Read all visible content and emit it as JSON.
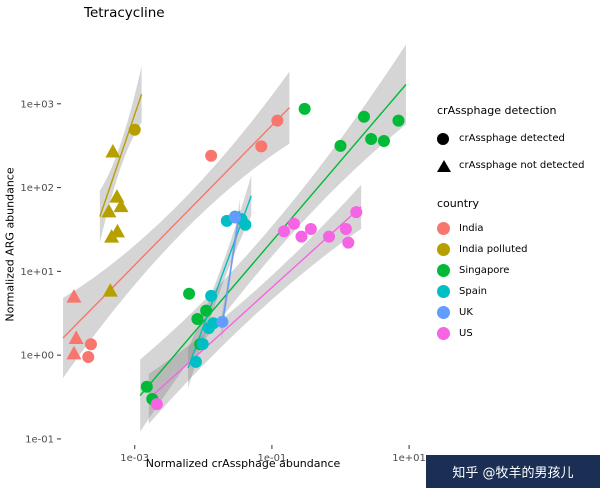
{
  "watermark": {
    "text": "知乎 @牧羊的男孩儿",
    "bg": "#1b2f55"
  },
  "chart_data": {
    "type": "scatter",
    "title": "Tetracycline",
    "xlabel": "Normalized crAssphage abundance",
    "ylabel": "Normalized ARG abundance",
    "x_scale": "log10",
    "y_scale": "log10",
    "x_range": [
      8.7e-05,
      16.5
    ],
    "y_range": [
      0.087,
      6100
    ],
    "grid": "off",
    "legend_position": "right",
    "ribbon_color": "rgba(125,125,125,0.32)",
    "x_ticks": [
      {
        "v": 0.001,
        "label": "1e-03"
      },
      {
        "v": 0.1,
        "label": "1e-01"
      },
      {
        "v": 10,
        "label": "1e+01"
      }
    ],
    "y_ticks": [
      {
        "v": 0.1,
        "label": "1e-01"
      },
      {
        "v": 1,
        "label": "1e+00"
      },
      {
        "v": 10,
        "label": "1e+01"
      },
      {
        "v": 100,
        "label": "1e+02"
      },
      {
        "v": 1000,
        "label": "1e+03"
      }
    ],
    "shape_legend": {
      "title": "crAssphage detection",
      "items": [
        {
          "shape": "circle",
          "label": "crAssphage detected"
        },
        {
          "shape": "triangle",
          "label": "crAssphage not detected"
        }
      ]
    },
    "color_legend": {
      "title": "country",
      "items": [
        {
          "label": "India",
          "color": "#F8766D"
        },
        {
          "label": "India polluted",
          "color": "#B79F00"
        },
        {
          "label": "Singapore",
          "color": "#00BA38"
        },
        {
          "label": "Spain",
          "color": "#00BFC4"
        },
        {
          "label": "UK",
          "color": "#619CFF"
        },
        {
          "label": "US",
          "color": "#F564E3"
        }
      ]
    },
    "series": [
      {
        "name": "India",
        "color": "#F8766D",
        "points": [
          {
            "x": 0.00013,
            "y": 5.0,
            "detected": false
          },
          {
            "x": 0.00014,
            "y": 1.6,
            "detected": false
          },
          {
            "x": 0.00013,
            "y": 1.05,
            "detected": false
          },
          {
            "x": 0.00023,
            "y": 1.35,
            "detected": true
          },
          {
            "x": 0.00021,
            "y": 0.95,
            "detected": true
          },
          {
            "x": 0.013,
            "y": 240,
            "detected": true
          },
          {
            "x": 0.07,
            "y": 310,
            "detected": true
          },
          {
            "x": 0.12,
            "y": 630,
            "detected": true
          }
        ],
        "trend": {
          "x1": 9e-05,
          "y1": 1.6,
          "x2": 0.18,
          "y2": 900
        },
        "ribbon": [
          40,
          16,
          36
        ]
      },
      {
        "name": "India polluted",
        "color": "#B79F00",
        "points": [
          {
            "x": 0.001,
            "y": 490,
            "detected": true
          },
          {
            "x": 0.00048,
            "y": 270,
            "detected": false
          },
          {
            "x": 0.00055,
            "y": 78,
            "detected": false
          },
          {
            "x": 0.00042,
            "y": 52,
            "detected": false
          },
          {
            "x": 0.00063,
            "y": 60,
            "detected": false
          },
          {
            "x": 0.00056,
            "y": 30,
            "detected": false
          },
          {
            "x": 0.00046,
            "y": 26,
            "detected": false
          },
          {
            "x": 0.00044,
            "y": 5.9,
            "detected": false
          }
        ],
        "trend": {
          "x1": 0.00031,
          "y1": 45,
          "x2": 0.00126,
          "y2": 1300
        },
        "ribbon": [
          26,
          12,
          28
        ]
      },
      {
        "name": "Singapore",
        "color": "#00BA38",
        "points": [
          {
            "x": 0.0015,
            "y": 0.42,
            "detected": true
          },
          {
            "x": 0.0018,
            "y": 0.3,
            "detected": true
          },
          {
            "x": 0.0062,
            "y": 5.4,
            "detected": true
          },
          {
            "x": 0.0082,
            "y": 2.7,
            "detected": true
          },
          {
            "x": 0.011,
            "y": 3.4,
            "detected": true
          },
          {
            "x": 0.009,
            "y": 1.35,
            "detected": true
          },
          {
            "x": 0.3,
            "y": 870,
            "detected": true
          },
          {
            "x": 1.0,
            "y": 315,
            "detected": true
          },
          {
            "x": 2.2,
            "y": 700,
            "detected": true
          },
          {
            "x": 2.8,
            "y": 380,
            "detected": true
          },
          {
            "x": 4.3,
            "y": 360,
            "detected": true
          },
          {
            "x": 7.0,
            "y": 630,
            "detected": true
          }
        ],
        "trend": {
          "x1": 0.0012,
          "y1": 0.33,
          "x2": 9.0,
          "y2": 1700
        },
        "ribbon": [
          36,
          15,
          40
        ]
      },
      {
        "name": "Spain",
        "color": "#00BFC4",
        "points": [
          {
            "x": 0.0078,
            "y": 0.83,
            "detected": true
          },
          {
            "x": 0.0098,
            "y": 1.36,
            "detected": true
          },
          {
            "x": 0.012,
            "y": 2.1,
            "detected": true
          },
          {
            "x": 0.014,
            "y": 2.4,
            "detected": true
          },
          {
            "x": 0.013,
            "y": 5.1,
            "detected": true
          },
          {
            "x": 0.022,
            "y": 40,
            "detected": true
          },
          {
            "x": 0.029,
            "y": 45,
            "detected": true
          },
          {
            "x": 0.036,
            "y": 42,
            "detected": true
          },
          {
            "x": 0.041,
            "y": 36,
            "detected": true
          }
        ],
        "trend": {
          "x1": 0.006,
          "y1": 0.7,
          "x2": 0.05,
          "y2": 80
        },
        "ribbon": [
          20,
          10,
          20
        ]
      },
      {
        "name": "UK",
        "color": "#619CFF",
        "points": [
          {
            "x": 0.019,
            "y": 2.5,
            "detected": true
          },
          {
            "x": 0.029,
            "y": 44,
            "detected": true
          }
        ],
        "trend": {
          "x1": 0.0185,
          "y1": 2.1,
          "x2": 0.034,
          "y2": 53
        },
        "ribbon": [
          12,
          7,
          12
        ]
      },
      {
        "name": "US",
        "color": "#F564E3",
        "points": [
          {
            "x": 0.0021,
            "y": 0.26,
            "detected": true
          },
          {
            "x": 0.15,
            "y": 30,
            "detected": true
          },
          {
            "x": 0.21,
            "y": 37,
            "detected": true
          },
          {
            "x": 0.27,
            "y": 26,
            "detected": true
          },
          {
            "x": 0.37,
            "y": 32,
            "detected": true
          },
          {
            "x": 0.68,
            "y": 26,
            "detected": true
          },
          {
            "x": 1.2,
            "y": 32,
            "detected": true
          },
          {
            "x": 1.7,
            "y": 51,
            "detected": true
          },
          {
            "x": 1.3,
            "y": 22,
            "detected": true
          }
        ],
        "trend": {
          "x1": 0.0016,
          "y1": 0.3,
          "x2": 2.0,
          "y2": 59
        },
        "ribbon": [
          25,
          12,
          22
        ]
      }
    ]
  }
}
